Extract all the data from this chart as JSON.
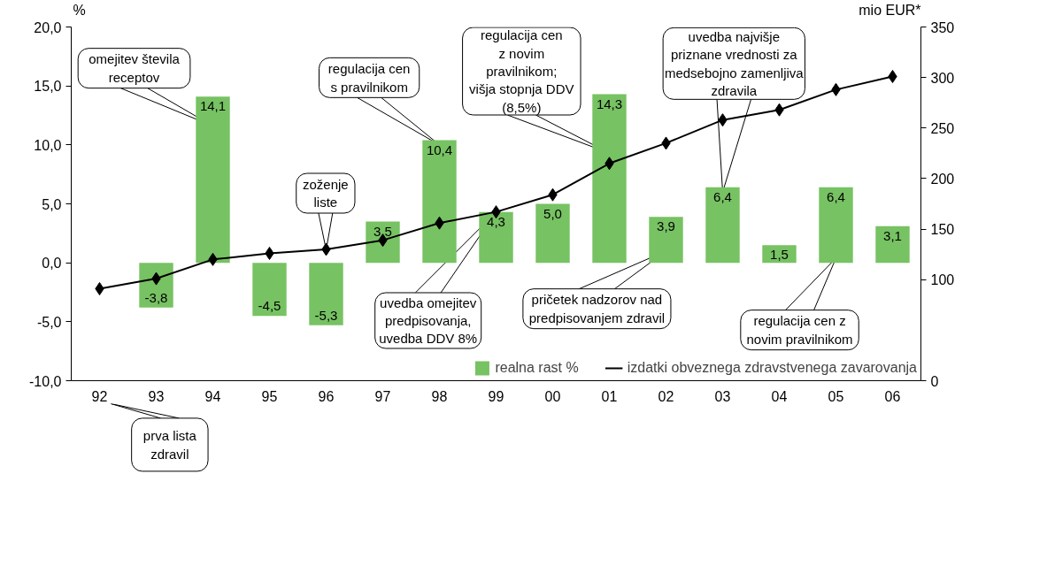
{
  "chart_data": {
    "type": "bar",
    "categories": [
      "92",
      "93",
      "94",
      "95",
      "96",
      "97",
      "98",
      "99",
      "00",
      "01",
      "02",
      "03",
      "04",
      "05",
      "06"
    ],
    "ylabel": "%",
    "y2label": "mio EUR*",
    "ylim": [
      -10,
      20
    ],
    "yticks": [
      {
        "value": -10,
        "label": "-10,0"
      },
      {
        "value": -5,
        "label": "-5,0"
      },
      {
        "value": 0,
        "label": "0,0"
      },
      {
        "value": 5,
        "label": "5,0"
      },
      {
        "value": 10,
        "label": "10,0"
      },
      {
        "value": 15,
        "label": "15,0"
      },
      {
        "value": 20,
        "label": "20,0"
      }
    ],
    "y2lim": [
      0,
      350
    ],
    "y2ticks": [
      0,
      100,
      150,
      200,
      250,
      300,
      350
    ],
    "series": [
      {
        "name": "realna rast %",
        "color": "#77c263",
        "values": [
          null,
          -3.8,
          14.1,
          -4.5,
          -5.3,
          3.5,
          10.4,
          4.3,
          5.0,
          14.3,
          3.9,
          6.4,
          1.5,
          6.4,
          3.1
        ],
        "value_labels": [
          null,
          "-3,8",
          "14,1",
          "-4,5",
          "-5,3",
          "3,5",
          "10,4",
          "4,3",
          "5,0",
          "14,3",
          "3,9",
          "6,4",
          "1,5",
          "6,4",
          "3,1"
        ]
      },
      {
        "name": "izdatki obveznega zdravstvenega zavarovanja",
        "type": "line",
        "axis": "y2",
        "color": "#000000",
        "marker": "diamond",
        "values": [
          91,
          101,
          120,
          126,
          130,
          139,
          156,
          167,
          184,
          215,
          235,
          258,
          268,
          288,
          301
        ]
      }
    ],
    "legend": "bottom right",
    "annotations": [
      "prva lista\nzdravil",
      "omejitev števila\nreceptov",
      {
        "text": "zoženje\nliste",
        "x": "96",
        "y": 1.1
      },
      "regulacija cen\ns pravilnikom",
      "regulacija cen\nz novim\npravilnikom;\nvišja stopnja DDV\n(8,5%)",
      "uvedba najvišje\npriznane vrednosti za\nmedsebojno zamenljiva\nzdravila",
      {
        "text": "uvedba omejitev\npredpisovanja,\nuvedba DDV 8%",
        "x": "99",
        "y": 4.3
      },
      "pričetek nadzorov nad\npredpisovanjem zdravil",
      "regulacija cen z\nnovim pravilnikom"
    ]
  }
}
